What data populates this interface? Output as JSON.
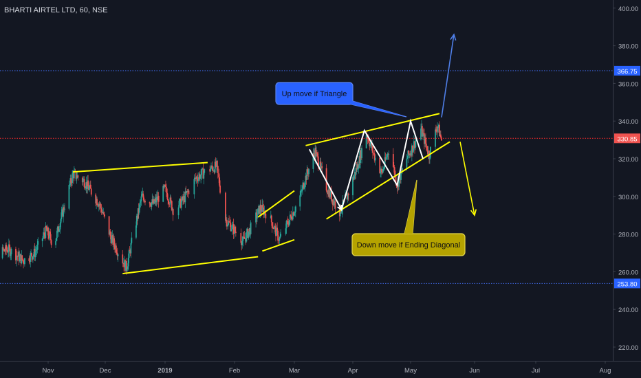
{
  "chart_title": "BHARTI AIRTEL LTD, 60, NSE",
  "colors": {
    "background": "#131722",
    "axis_text": "#b2b5be",
    "grid_separator": "#3a3f4b",
    "candle_up": "#26a69a",
    "candle_down": "#ef5350",
    "trendline": "#ffff00",
    "wave": "#ffffff",
    "level_blue": "#3c62d6",
    "level_red": "#ff2a2a",
    "price_tag_red": "#ef5350",
    "price_tag_blue": "#2962ff",
    "callout_blue_fill": "#2962ff",
    "callout_yellow_fill": "#b5a300"
  },
  "chart_data": {
    "type": "candlestick",
    "title": "BHARTI AIRTEL LTD, 60, NSE",
    "x_ticks": [
      "Nov",
      "Dec",
      "2019",
      "Feb",
      "Mar",
      "Apr",
      "May",
      "Jun",
      "Jul",
      "Aug"
    ],
    "y_ticks": [
      220,
      240,
      260,
      280,
      300,
      320,
      340,
      360,
      380,
      400
    ],
    "y_tick_labels": [
      "220.00",
      "240.00",
      "260.00",
      "280.00",
      "300.00",
      "320.00",
      "340.00",
      "360.00",
      "380.00",
      "400.00"
    ],
    "ylim": [
      213,
      406
    ],
    "price_path_dates": [
      "2018-10-01",
      "2018-10-11",
      "2018-10-19",
      "2018-10-25",
      "2018-10-31",
      "2018-11-04",
      "2018-11-14",
      "2018-11-20",
      "2018-11-24",
      "2018-11-28",
      "2018-12-04",
      "2018-12-12",
      "2018-12-16",
      "2018-12-20",
      "2018-12-26",
      "2019-01-01",
      "2019-01-05",
      "2019-01-09",
      "2019-01-15",
      "2019-01-20",
      "2019-01-24",
      "2019-01-28",
      "2019-02-01",
      "2019-02-05",
      "2019-02-09",
      "2019-02-13",
      "2019-02-17",
      "2019-02-22",
      "2019-02-26",
      "2019-03-04",
      "2019-03-07",
      "2019-03-12",
      "2019-03-18",
      "2019-03-22",
      "2019-03-25",
      "2019-03-29",
      "2019-04-04",
      "2019-04-08",
      "2019-04-12",
      "2019-04-16",
      "2019-04-20",
      "2019-04-24",
      "2019-04-28",
      "2019-05-02",
      "2019-05-06",
      "2019-05-10",
      "2019-05-14",
      "2019-05-16"
    ],
    "price_path_values": [
      268,
      272,
      266,
      270,
      282,
      274,
      312,
      308,
      302,
      296,
      278,
      262,
      282,
      300,
      296,
      304,
      292,
      298,
      310,
      314,
      316,
      288,
      282,
      276,
      284,
      294,
      290,
      277,
      286,
      300,
      310,
      324,
      305,
      297,
      292,
      300,
      318,
      334,
      322,
      312,
      326,
      306,
      318,
      326,
      336,
      322,
      338,
      330
    ],
    "levels": [
      {
        "label": "366.75",
        "value": 366.75,
        "style": "dotted",
        "color": "blue"
      },
      {
        "label": "330.85",
        "value": 330.85,
        "style": "dotted",
        "color": "red"
      },
      {
        "label": "253.80",
        "value": 253.8,
        "style": "dotted",
        "color": "blue"
      }
    ],
    "trendlines_yellow": [
      {
        "from": [
          "2018-11-14",
          313
        ],
        "to": [
          "2019-01-20",
          318
        ]
      },
      {
        "from": [
          "2018-12-10",
          259
        ],
        "to": [
          "2019-02-12",
          268
        ]
      },
      {
        "from": [
          "2019-02-12",
          289
        ],
        "to": [
          "2019-02-29",
          303
        ]
      },
      {
        "from": [
          "2019-02-14",
          271
        ],
        "to": [
          "2019-03-01",
          277
        ]
      },
      {
        "from": [
          "2019-03-07",
          327
        ],
        "to": [
          "2019-05-15",
          344
        ]
      },
      {
        "from": [
          "2019-03-18",
          288
        ],
        "to": [
          "2019-05-20",
          329
        ]
      }
    ],
    "wave_white": [
      [
        "2019-03-09",
        325
      ],
      [
        "2019-03-26",
        293
      ],
      [
        "2019-04-07",
        335
      ],
      [
        "2019-04-24",
        306
      ],
      [
        "2019-05-01",
        340
      ],
      [
        "2019-05-07",
        320
      ]
    ],
    "arrows": [
      {
        "color": "blue",
        "from": [
          "2019-05-16",
          342
        ],
        "to": [
          "2019-05-22",
          386
        ]
      },
      {
        "color": "yellow",
        "from": [
          "2019-05-25",
          329
        ],
        "to": [
          "2019-06-01",
          290
        ]
      }
    ],
    "annotations": [
      {
        "text": "Up move if Triangle",
        "color": "blue"
      },
      {
        "text": "Down move if Ending Diagonal",
        "color": "yellow"
      }
    ],
    "grid": false
  }
}
